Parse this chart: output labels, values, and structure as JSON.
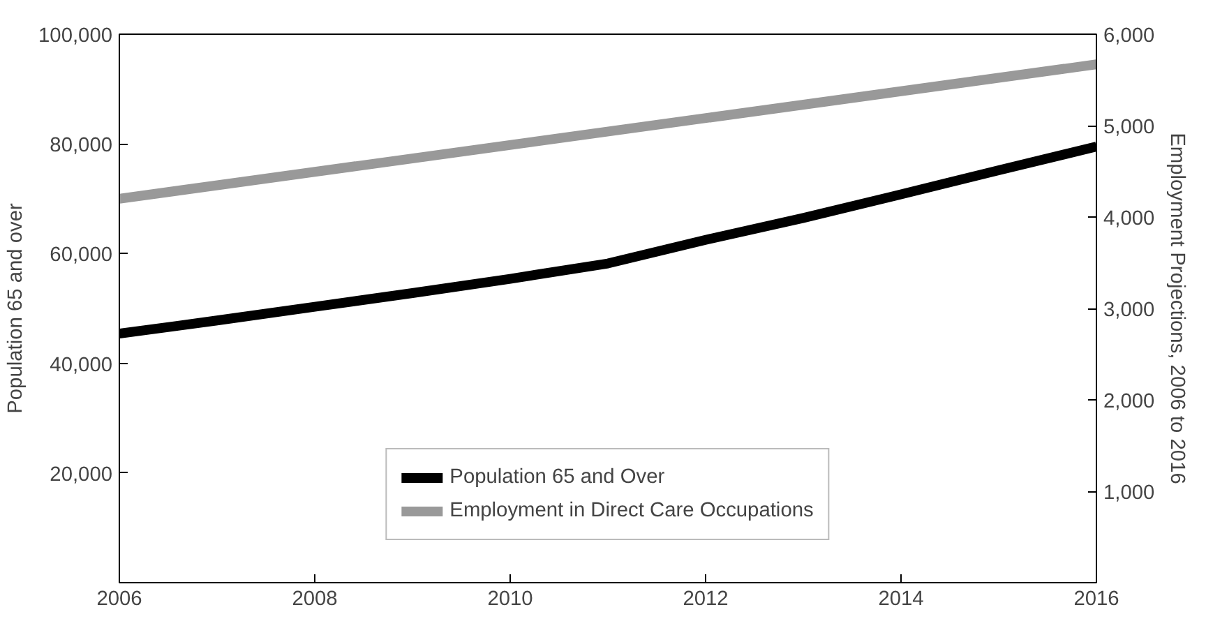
{
  "chart_data": {
    "type": "line",
    "xlabel": null,
    "ylabel": "Population 65 and over",
    "y2label": "Employment Projections, 2006 to 2016",
    "x": [
      2006,
      2007,
      2008,
      2009,
      2010,
      2011,
      2012,
      2013,
      2014,
      2015,
      2016
    ],
    "series": [
      {
        "name": "Population 65 and Over",
        "color": "#000000",
        "values": [
          45400,
          47800,
          50300,
          52800,
          55400,
          58200,
          62500,
          66500,
          70800,
          75200,
          79500
        ]
      },
      {
        "name": "Employment in Direct Care Occupations",
        "color": "#999999",
        "axis": "y2",
        "x": [
          2006,
          2016
        ],
        "values": [
          4200,
          5670
        ]
      }
    ],
    "xlim": [
      2006,
      2016
    ],
    "xticks": [
      2006,
      2008,
      2010,
      2012,
      2014,
      2016
    ],
    "ylim": [
      0,
      100000
    ],
    "yticks": [
      {
        "value": 20000,
        "label": "20,000"
      },
      {
        "value": 40000,
        "label": "40,000"
      },
      {
        "value": 60000,
        "label": "60,000"
      },
      {
        "value": 80000,
        "label": "80,000"
      },
      {
        "value": 100000,
        "label": "100,000"
      }
    ],
    "y2lim": [
      0,
      6000
    ],
    "y2ticks": [
      {
        "value": 1000,
        "label": "1,000"
      },
      {
        "value": 2000,
        "label": "2,000"
      },
      {
        "value": 3000,
        "label": "3,000"
      },
      {
        "value": 4000,
        "label": "4,000"
      },
      {
        "value": 5000,
        "label": "5,000"
      },
      {
        "value": 6000,
        "label": "6,000"
      }
    ],
    "grid": false,
    "legend": "bottom",
    "marker": "none",
    "line_style": "solid"
  }
}
